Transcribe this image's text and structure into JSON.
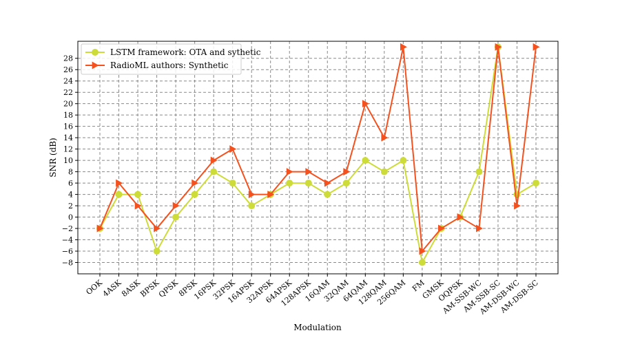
{
  "chart_data": {
    "type": "line",
    "title": "",
    "xlabel": "Modulation",
    "ylabel": "SNR (dB)",
    "categories": [
      "OOK",
      "4ASK",
      "8ASK",
      "BPSK",
      "QPSK",
      "8PSK",
      "16PSK",
      "32PSK",
      "16APSK",
      "32APSK",
      "64APSK",
      "128APSK",
      "16QAM",
      "32QAM",
      "64QAM",
      "128QAM",
      "256QAM",
      "FM",
      "GMSK",
      "OQPSK",
      "AM-SSB-WC",
      "AM-SSB-SC",
      "AM-DSB-WC",
      "AM-DSB-SC"
    ],
    "yticks": [
      "−8",
      "−6",
      "−4",
      "−2",
      "0",
      "2",
      "4",
      "6",
      "8",
      "10",
      "12",
      "14",
      "16",
      "18",
      "20",
      "22",
      "24",
      "26",
      "28"
    ],
    "ylim": [
      -10,
      31
    ],
    "grid": true,
    "legend_position": "top-left",
    "series": [
      {
        "name": "LSTM framework: OTA and sythetic",
        "color": "#cddc39",
        "marker": "circle",
        "values": [
          -2,
          4,
          4,
          -6,
          0,
          4,
          8,
          6,
          2,
          4,
          6,
          6,
          4,
          6,
          10,
          8,
          10,
          -8,
          -2,
          0,
          8,
          30,
          4,
          6
        ]
      },
      {
        "name": "RadioML authors: Synthetic",
        "color": "#f4511e",
        "marker": "triangle-right",
        "values": [
          -2,
          6,
          2,
          -2,
          2,
          6,
          10,
          12,
          4,
          4,
          8,
          8,
          6,
          8,
          20,
          14,
          30,
          -6,
          -2,
          0,
          -2,
          30,
          2,
          30
        ]
      }
    ]
  }
}
